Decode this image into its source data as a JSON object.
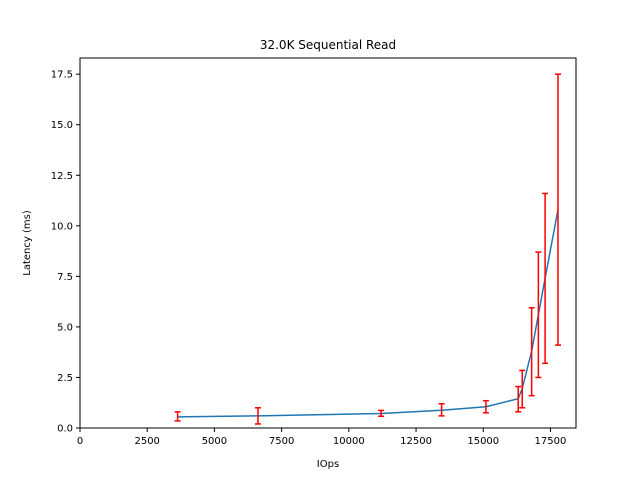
{
  "chart_data": {
    "type": "line",
    "title": "32.0K  Sequential Read",
    "xlabel": "IOps",
    "ylabel": "Latency (ms)",
    "xlim": [
      0,
      18450
    ],
    "ylim": [
      0,
      18.3
    ],
    "xticks": [
      0,
      2500,
      5000,
      7500,
      10000,
      12500,
      15000,
      17500
    ],
    "xtick_labels": [
      "0",
      "2500",
      "5000",
      "7500",
      "10000",
      "12500",
      "15000",
      "17500"
    ],
    "yticks": [
      0,
      2.5,
      5.0,
      7.5,
      10.0,
      12.5,
      15.0,
      17.5
    ],
    "ytick_labels": [
      "0.0",
      "2.5",
      "5.0",
      "7.5",
      "10.0",
      "12.5",
      "15.0",
      "17.5"
    ],
    "grid": false,
    "line_color": "#1f77b4",
    "errorbar_color": "#ff0000",
    "series": [
      {
        "x": [
          3630,
          6620,
          11200,
          13450,
          15100,
          16300,
          16450,
          16800,
          17050,
          17300,
          17780
        ],
        "y": [
          0.55,
          0.6,
          0.72,
          0.88,
          1.05,
          1.45,
          1.95,
          3.8,
          5.6,
          7.4,
          10.8
        ],
        "yerr_low": [
          0.35,
          0.2,
          0.58,
          0.6,
          0.75,
          0.8,
          1.0,
          1.6,
          2.5,
          3.2,
          4.1
        ],
        "yerr_high": [
          0.8,
          1.0,
          0.87,
          1.2,
          1.35,
          2.05,
          2.85,
          5.95,
          8.7,
          11.6,
          17.5
        ]
      }
    ]
  }
}
